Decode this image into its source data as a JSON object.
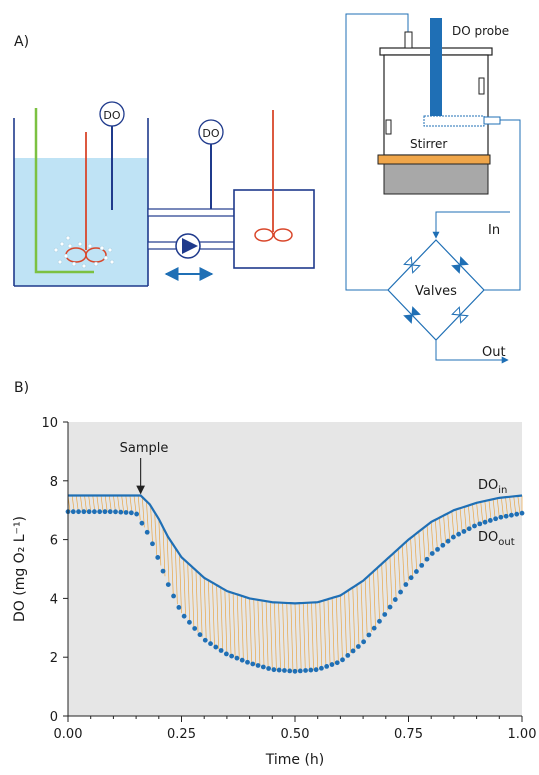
{
  "panel_a": {
    "label": "A)",
    "probe_label": "DO",
    "do_probe_label": "DO probe",
    "stirrer_label": "Stirrer",
    "valves_label": "Valves",
    "in_label": "In",
    "out_label": "Out"
  },
  "panel_b": {
    "label": "B)",
    "sample_label": "Sample"
  },
  "colors": {
    "water": "#bfe3f5",
    "tank_outline": "#1f3a8c",
    "red_rod": "#d9472b",
    "green_rod": "#7cc142",
    "blue": "#1f6fb5",
    "plot_bg": "#e6e6e6",
    "stirrer_plate": "#f0a64a",
    "base": "#a8a8a8",
    "orange_fill": "#e8a74a"
  },
  "chart_data": {
    "type": "line",
    "xlabel": "Time (h)",
    "ylabel": "DO (mg O₂ L⁻¹)",
    "xlim": [
      0,
      1
    ],
    "ylim": [
      0,
      10
    ],
    "xticks": [
      "0.00",
      "0.25",
      "0.50",
      "0.75",
      "1.00"
    ],
    "yticks": [
      "0",
      "2",
      "4",
      "6",
      "8",
      "10"
    ],
    "grid": false,
    "sample_time": 0.16,
    "series": [
      {
        "name": "DOin",
        "style": "line",
        "x": [
          0,
          0.1,
          0.16,
          0.18,
          0.2,
          0.22,
          0.25,
          0.3,
          0.35,
          0.4,
          0.45,
          0.5,
          0.55,
          0.6,
          0.65,
          0.7,
          0.75,
          0.8,
          0.85,
          0.9,
          0.95,
          1.0
        ],
        "y": [
          7.5,
          7.5,
          7.5,
          7.2,
          6.7,
          6.1,
          5.4,
          4.7,
          4.25,
          4.0,
          3.87,
          3.83,
          3.87,
          4.1,
          4.6,
          5.3,
          6.0,
          6.6,
          7.0,
          7.25,
          7.42,
          7.5
        ]
      },
      {
        "name": "DOout",
        "style": "dots",
        "x": [
          0,
          0.1,
          0.15,
          0.18,
          0.2,
          0.22,
          0.25,
          0.3,
          0.35,
          0.4,
          0.45,
          0.5,
          0.55,
          0.6,
          0.65,
          0.7,
          0.75,
          0.8,
          0.85,
          0.9,
          0.95,
          1.0
        ],
        "y": [
          6.95,
          6.95,
          6.9,
          6.1,
          5.3,
          4.5,
          3.5,
          2.6,
          2.1,
          1.8,
          1.58,
          1.52,
          1.58,
          1.85,
          2.5,
          3.5,
          4.6,
          5.5,
          6.1,
          6.5,
          6.75,
          6.9
        ]
      }
    ]
  }
}
